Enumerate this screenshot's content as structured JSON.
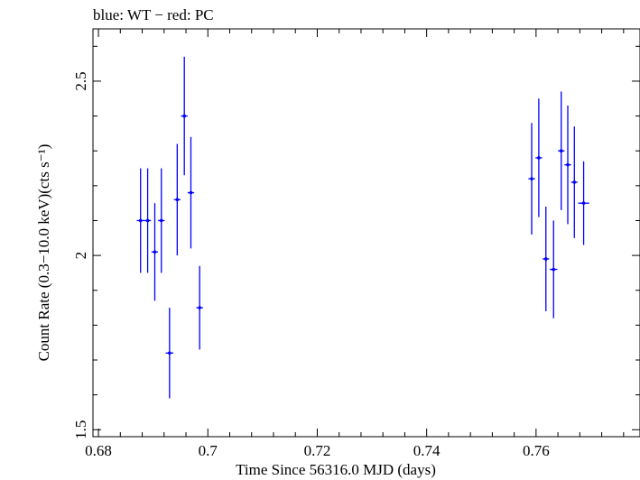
{
  "chart_data": {
    "type": "scatter",
    "title": "blue: WT − red: PC",
    "xlabel": "Time Since 56316.0 MJD (days)",
    "ylabel": "Count Rate (0.3−10.0 keV)(cts s⁻¹)",
    "xlim": [
      0.679,
      0.779
    ],
    "ylim": [
      1.48,
      2.65
    ],
    "xticks": [
      0.68,
      0.7,
      0.72,
      0.74,
      0.76
    ],
    "xtick_labels": [
      "0.68",
      "0.7",
      "0.72",
      "0.74",
      "0.76"
    ],
    "yticks": [
      1.5,
      2.0,
      2.5
    ],
    "ytick_labels": [
      "1.5",
      "2",
      "2.5"
    ],
    "grid": false,
    "colors": {
      "wt": "#0000ff",
      "pc": "#ff0000",
      "axes": "#000000"
    },
    "series": [
      {
        "color": "#0000ff",
        "x": [
          0.6877,
          0.689,
          0.6903,
          0.6915,
          0.693,
          0.6944,
          0.6957,
          0.6969,
          0.6985,
          0.7592,
          0.7605,
          0.7618,
          0.7632,
          0.7646,
          0.7658,
          0.767,
          0.7687
        ],
        "xerr": [
          0.0007,
          0.0006,
          0.0006,
          0.0006,
          0.0007,
          0.0006,
          0.0006,
          0.0006,
          0.0006,
          0.0006,
          0.0006,
          0.0006,
          0.0007,
          0.0006,
          0.0006,
          0.0006,
          0.001
        ],
        "y": [
          2.1,
          2.1,
          2.01,
          2.1,
          1.72,
          2.16,
          2.4,
          2.18,
          1.85,
          2.22,
          2.28,
          1.99,
          1.96,
          2.3,
          2.26,
          2.21,
          2.15
        ],
        "yerr": [
          0.15,
          0.15,
          0.14,
          0.15,
          0.13,
          0.16,
          0.17,
          0.16,
          0.12,
          0.16,
          0.17,
          0.15,
          0.14,
          0.17,
          0.17,
          0.16,
          0.12
        ]
      }
    ]
  }
}
